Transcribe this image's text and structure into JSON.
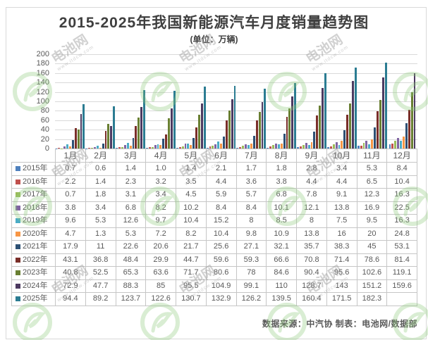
{
  "page": {
    "title": "2015-2025年我国新能源汽车月度销量趋势图",
    "subtitle": "(单位：万辆)",
    "source_note": "数据来源：中汽协  制表：电池网/数据部"
  },
  "watermark": {
    "brand": "电池网",
    "url": "www.itdcw.com",
    "logo_color": "#8fcb7c"
  },
  "axis": {
    "tick_label_color": "#595959",
    "gridline_color": "#d9d9d9"
  },
  "chart_data": {
    "type": "bar",
    "title": "2015-2025年我国新能源汽车月度销量趋势图",
    "unit_label": "(单位：万辆)",
    "categories": [
      "1月",
      "2月",
      "3月",
      "4月",
      "5月",
      "6月",
      "7月",
      "8月",
      "9月",
      "10月",
      "11月",
      "12月"
    ],
    "ylim": [
      0,
      200
    ],
    "ytick_interval": 20,
    "grid": true,
    "legend_position": "data-table-row-keys",
    "series": [
      {
        "name": "2015年",
        "color": "#4F81BD",
        "values": [
          0.7,
          0.6,
          1.4,
          1.0,
          1.4,
          2.1,
          1.7,
          1.8,
          2.8,
          3.4,
          5.3,
          8.4
        ],
        "display": [
          "0.7",
          "0.6",
          "1.4",
          "1.0",
          "1.4",
          "2.1",
          "1.7",
          "1.8",
          "2.8",
          "3.4",
          "5.3",
          "8.4"
        ]
      },
      {
        "name": "2016年",
        "color": "#C0504D",
        "values": [
          2.2,
          1.4,
          2.3,
          3.2,
          3.5,
          4.4,
          3.6,
          3.8,
          4.4,
          4.4,
          6.5,
          10.4
        ],
        "display": [
          "2.2",
          "1.4",
          "2.3",
          "3.2",
          "3.5",
          "4.4",
          "3.6",
          "3.8",
          "4.4",
          "4.4",
          "6.5",
          "10.4"
        ]
      },
      {
        "name": "2017年",
        "color": "#9BBB59",
        "values": [
          0.7,
          1.8,
          3.1,
          3.4,
          4.5,
          5.9,
          5.7,
          6.8,
          7.8,
          9.1,
          12.3,
          16.3
        ],
        "display": [
          "0.7",
          "1.8",
          "3.1",
          "3.4",
          "4.5",
          "5.9",
          "5.7",
          "6.8",
          "7.8",
          "9.1",
          "12.3",
          "16.3"
        ]
      },
      {
        "name": "2018年",
        "color": "#8064A2",
        "values": [
          3.8,
          3.4,
          6.8,
          8.2,
          10.2,
          8.4,
          8.4,
          10.1,
          12.1,
          13.8,
          16.9,
          22.5
        ],
        "display": [
          "3.8",
          "3.4",
          "6.8",
          "8.2",
          "10.2",
          "8.4",
          "8.4",
          "10.1",
          "12.1",
          "13.8",
          "16.9",
          "22.5"
        ]
      },
      {
        "name": "2019年",
        "color": "#4BACC6",
        "values": [
          9.6,
          5.3,
          12.6,
          9.7,
          10.4,
          15.2,
          8,
          8.5,
          8,
          7.5,
          9.5,
          16.3
        ],
        "display": [
          "9.6",
          "5.3",
          "12.6",
          "9.7",
          "10.4",
          "15.2",
          "8",
          "8.5",
          "8",
          "7.5",
          "9.5",
          "16.3"
        ]
      },
      {
        "name": "2020年",
        "color": "#F79646",
        "values": [
          4.7,
          1.3,
          5.3,
          7.2,
          8.2,
          10.4,
          9.8,
          10.9,
          13.8,
          16,
          20,
          24.8
        ],
        "display": [
          "4.7",
          "1.3",
          "5.3",
          "7.2",
          "8.2",
          "10.4",
          "9.8",
          "10.9",
          "13.8",
          "16",
          "20",
          "24.8"
        ]
      },
      {
        "name": "2021年",
        "color": "#2D5074",
        "values": [
          17.9,
          11,
          22.6,
          20.6,
          21.7,
          25.6,
          27.1,
          32.1,
          35.7,
          38.3,
          45,
          53.1
        ],
        "display": [
          "17.9",
          "11",
          "22.6",
          "20.6",
          "21.7",
          "25.6",
          "27.1",
          "32.1",
          "35.7",
          "38.3",
          "45",
          "53.1"
        ]
      },
      {
        "name": "2022年",
        "color": "#7A2E29",
        "values": [
          43.1,
          36.8,
          48.4,
          29.9,
          44.7,
          59.6,
          59.3,
          66.6,
          70.8,
          71.4,
          78.6,
          81.4
        ],
        "display": [
          "43.1",
          "36.8",
          "48.4",
          "29.9",
          "44.7",
          "59.6",
          "59.3",
          "66.6",
          "70.8",
          "71.4",
          "78.6",
          "81.4"
        ]
      },
      {
        "name": "2023年",
        "color": "#697F32",
        "values": [
          40.8,
          52.5,
          65.3,
          63.6,
          71.7,
          80.6,
          78,
          84.6,
          90.4,
          95.6,
          102.6,
          119.1
        ],
        "display": [
          "40.8",
          "52.5",
          "65.3",
          "63.6",
          "71.7",
          "80.6",
          "78",
          "84.6",
          "90.4",
          "95.6",
          "102.6",
          "119.1"
        ]
      },
      {
        "name": "2024年",
        "color": "#4C3A60",
        "values": [
          72.9,
          47.7,
          88.3,
          85,
          95.5,
          104.9,
          99.1,
          110,
          128.7,
          143,
          151.2,
          159.6
        ],
        "display": [
          "72.9",
          "47.7",
          "88.3",
          "85",
          "95.5",
          "104.9",
          "99.1",
          "110",
          "128.7",
          "143",
          "151.2",
          "159.6"
        ]
      },
      {
        "name": "2025年",
        "color": "#2B7C92",
        "values": [
          94.4,
          89.2,
          123.7,
          122.6,
          130.7,
          132.9,
          126.2,
          139.5,
          160.4,
          171.5,
          182.3,
          null
        ],
        "display": [
          "94.4",
          "89.2",
          "123.7",
          "122.6",
          "130.7",
          "132.9",
          "126.2",
          "139.5",
          "160.4",
          "171.5",
          "182.3",
          ""
        ]
      }
    ]
  }
}
